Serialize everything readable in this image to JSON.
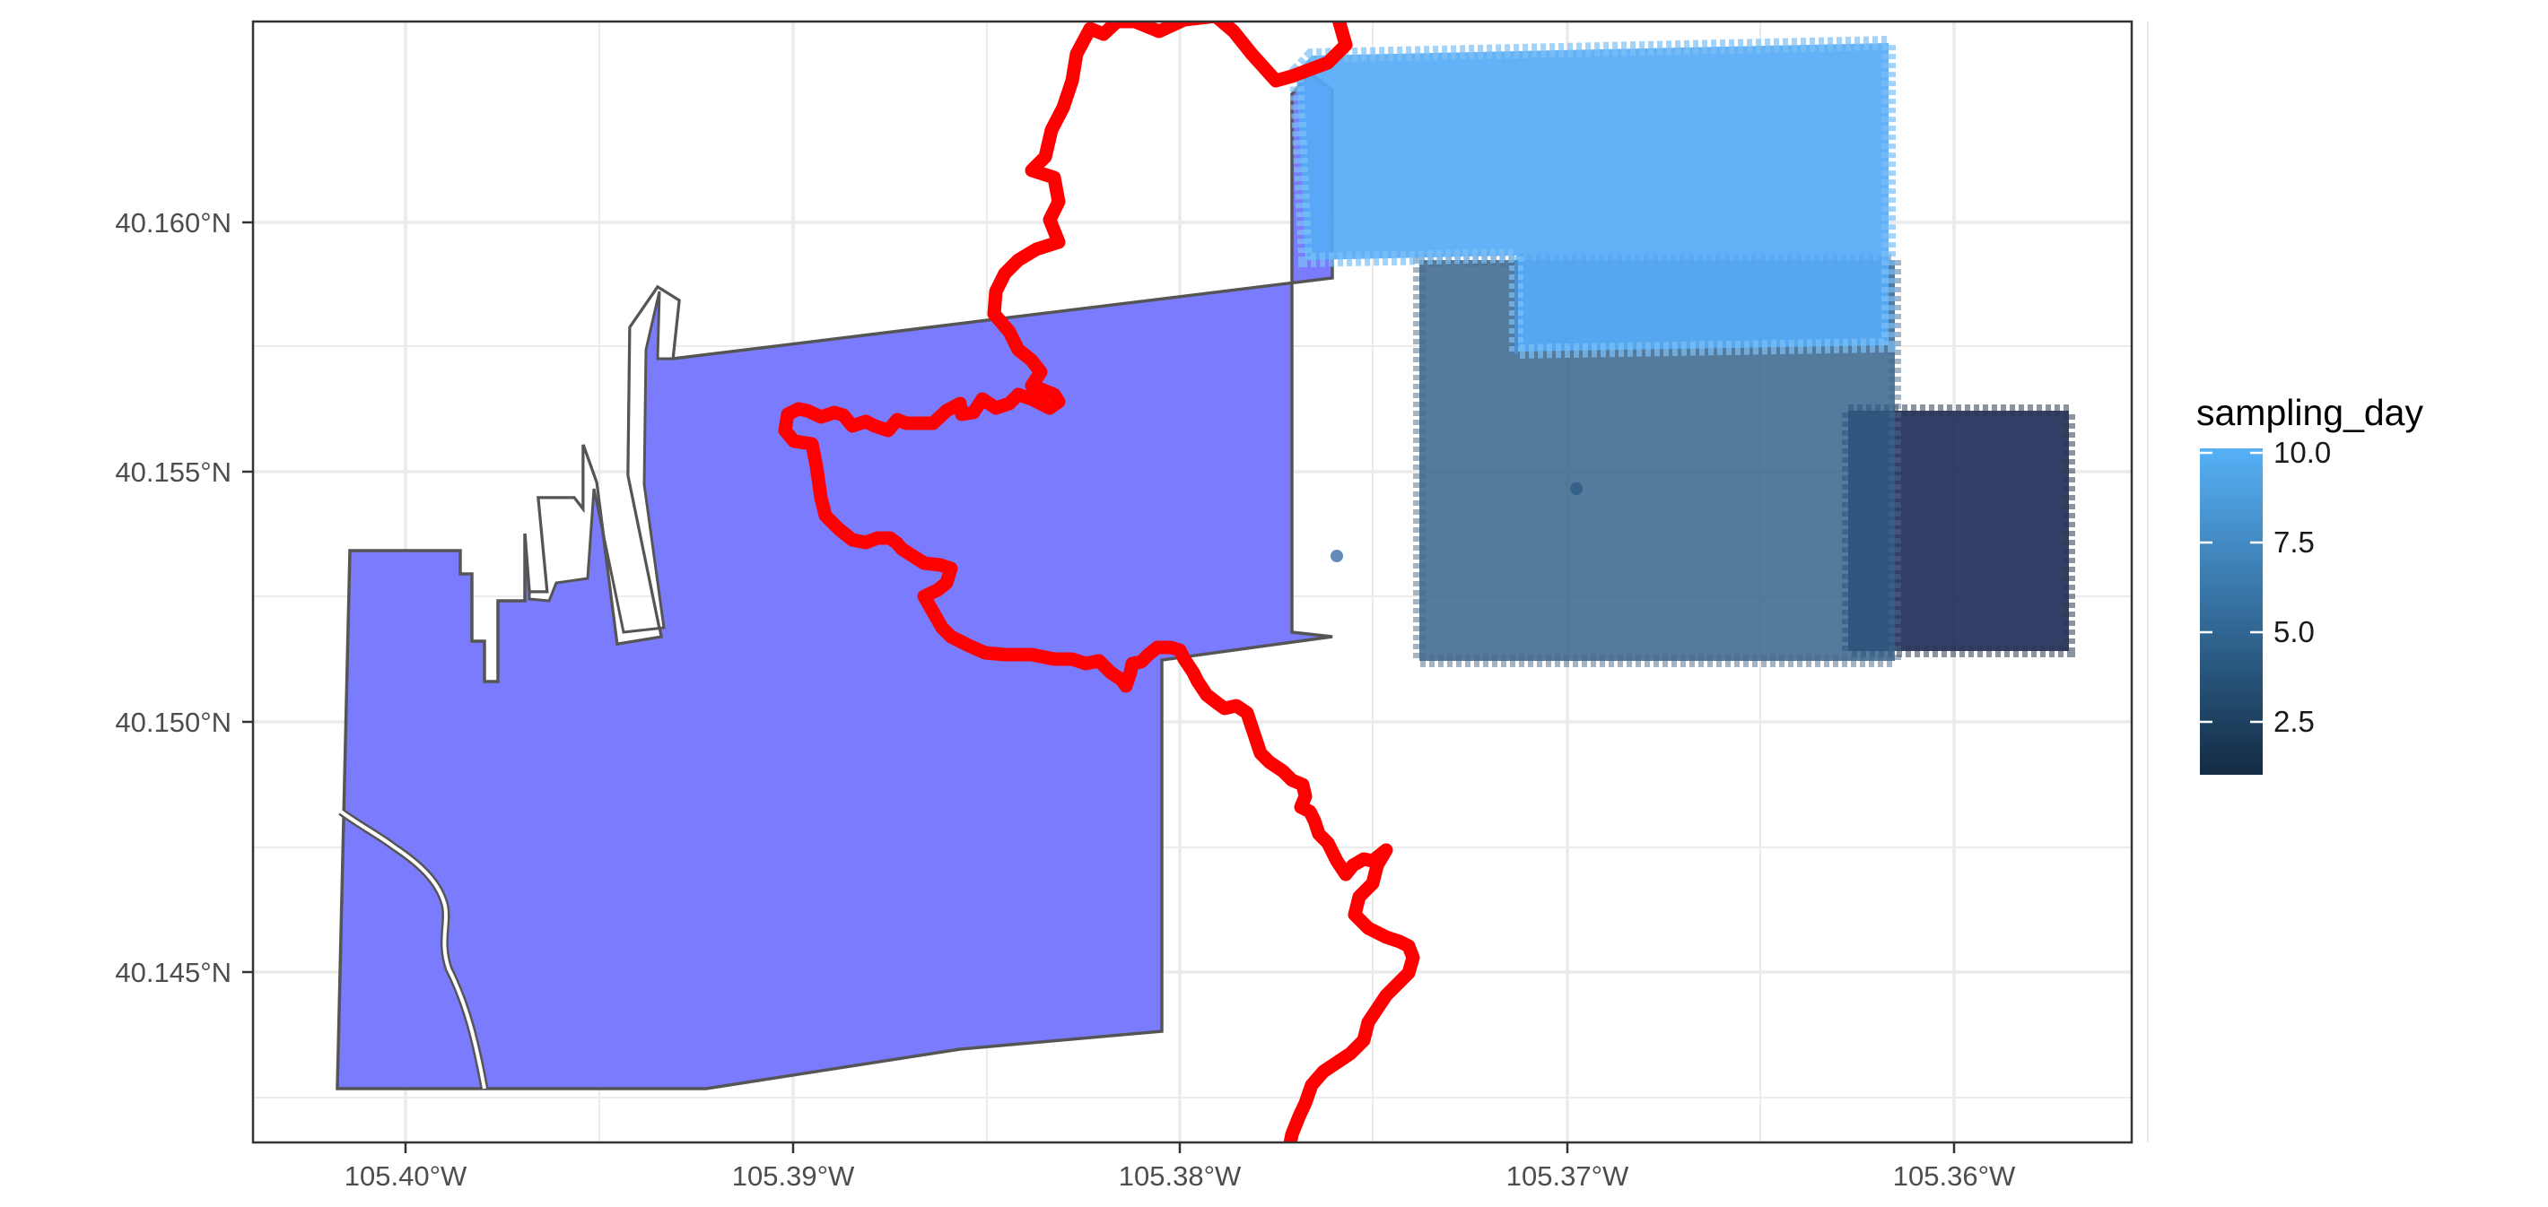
{
  "map": {
    "x_ticks": [
      "105.40°W",
      "105.39°W",
      "105.38°W",
      "105.37°W",
      "105.36°W"
    ],
    "y_ticks": [
      "40.160°N",
      "40.155°N",
      "40.150°N",
      "40.145°N"
    ],
    "lon_range": [
      -105.4046,
      -105.3557
    ],
    "lat_range": [
      40.1414,
      40.1642
    ],
    "layers": [
      {
        "name": "study-area-polygon",
        "fill": "#7b7bfd",
        "stroke": "#555555"
      },
      {
        "name": "trail-line",
        "color": "#ff0000"
      },
      {
        "name": "sampling-points",
        "variable": "sampling_day"
      }
    ]
  },
  "legend": {
    "title": "sampling_day",
    "labels": [
      "10.0",
      "7.5",
      "5.0",
      "2.5"
    ],
    "range": [
      1,
      10
    ],
    "color_low": "#132b43",
    "color_high": "#56b1f7"
  }
}
